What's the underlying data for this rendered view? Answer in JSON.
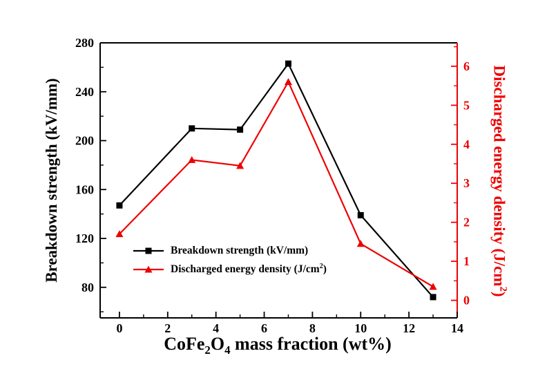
{
  "chart_data": {
    "type": "line",
    "title": "",
    "x": [
      0,
      3,
      5,
      7,
      10,
      13
    ],
    "series": [
      {
        "name": "Breakdown strength (kV/mm)",
        "axis": "left",
        "color": "#000000",
        "marker": "square",
        "values": [
          147,
          210,
          209,
          263,
          139,
          72
        ]
      },
      {
        "name": "Discharged energy density (J/cm2)",
        "axis": "right",
        "color": "#ee0000",
        "marker": "triangle",
        "values": [
          1.7,
          3.6,
          3.45,
          5.6,
          1.45,
          0.35
        ]
      }
    ],
    "xlabel": "CoFe2O4 mass fraction (wt%)",
    "xlabel_parts": {
      "p1": "CoFe",
      "s1": "2",
      "p2": "O",
      "s2": "4",
      "p3": " mass fraction (wt%)"
    },
    "ylabel_left": "Breakdown strength (kV/mm)",
    "ylabel_right": "Discharged energy density (J/cm2)",
    "ylabel_right_parts": {
      "prefix": "Discharged energy density (J/cm",
      "sup": "2",
      "suffix": ")"
    },
    "x_ticks": [
      0,
      2,
      4,
      6,
      8,
      10,
      12,
      14
    ],
    "xlim": [
      -0.8,
      14
    ],
    "left_ticks": [
      80,
      120,
      160,
      200,
      240,
      280
    ],
    "left_lim": [
      55,
      280
    ],
    "right_ticks": [
      0,
      1,
      2,
      3,
      4,
      5,
      6
    ],
    "right_lim": [
      -0.45,
      6.6
    ],
    "grid": false,
    "legend": {
      "position": "inside-lower-left",
      "entries": [
        {
          "label": "Breakdown strength (kV/mm)",
          "marker": "square",
          "color": "#000000"
        },
        {
          "label_prefix": "Discharged energy density (J/cm",
          "label_sup": "2",
          "label_suffix": ")",
          "marker": "triangle",
          "color": "#ee0000"
        }
      ]
    },
    "colors": {
      "left_axis": "#000000",
      "right_axis": "#ee0000",
      "background": "#ffffff"
    }
  }
}
